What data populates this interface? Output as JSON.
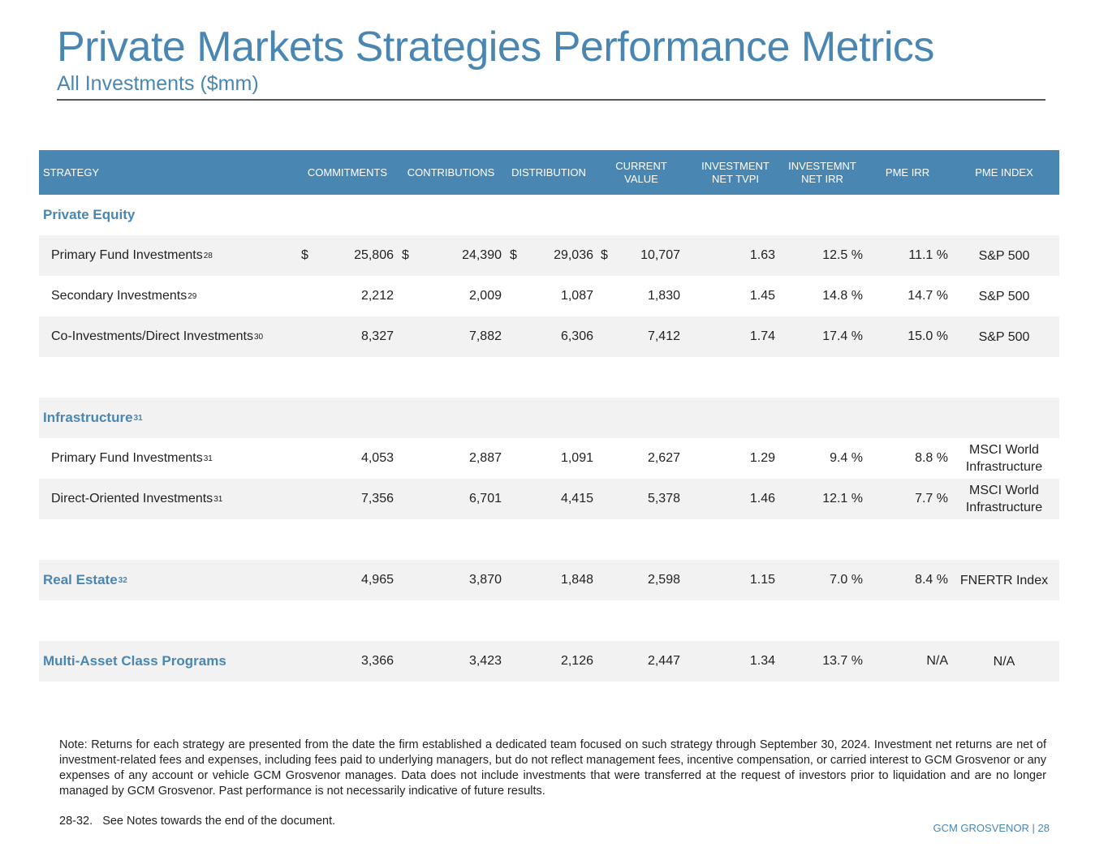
{
  "header": {
    "title": "Private Markets Strategies Performance Metrics",
    "subtitle": "All Investments ($mm)"
  },
  "table": {
    "columns": [
      "STRATEGY",
      "COMMITMENTS",
      "CONTRIBUTIONS",
      "DISTRIBUTION",
      "CURRENT\nVALUE",
      "INVESTMENT\nNET TVPI",
      "INVESTEMNT\nNET IRR",
      "PME IRR",
      "PME INDEX"
    ],
    "rows": [
      {
        "label": "Private Equity",
        "sup": "",
        "section": true,
        "shade": false,
        "cells": [
          "",
          "",
          "",
          "",
          "",
          "",
          "",
          ""
        ]
      },
      {
        "label": "Primary Fund Investments",
        "sup": "28",
        "section": false,
        "shade": true,
        "dollar": "$",
        "cells": [
          "25,806",
          "24,390",
          "29,036",
          "10,707",
          "1.63",
          "12.5 %",
          "11.1 %",
          "S&P 500"
        ]
      },
      {
        "label": "Secondary Investments",
        "sup": "29",
        "section": false,
        "shade": false,
        "cells": [
          "2,212",
          "2,009",
          "1,087",
          "1,830",
          "1.45",
          "14.8 %",
          "14.7 %",
          "S&P 500"
        ]
      },
      {
        "label": "Co-Investments/Direct Investments",
        "sup": "30",
        "section": false,
        "shade": true,
        "cells": [
          "8,327",
          "7,882",
          "6,306",
          "7,412",
          "1.74",
          "17.4 %",
          "15.0 %",
          "S&P 500"
        ]
      },
      {
        "label": "",
        "sup": "",
        "section": false,
        "shade": false,
        "spacer": true,
        "cells": [
          "",
          "",
          "",
          "",
          "",
          "",
          "",
          ""
        ]
      },
      {
        "label": "Infrastructure",
        "sup": "31",
        "section": true,
        "shade": true,
        "cells": [
          "",
          "",
          "",
          "",
          "",
          "",
          "",
          ""
        ]
      },
      {
        "label": "Primary Fund Investments",
        "sup": "31",
        "section": false,
        "shade": false,
        "cells": [
          "4,053",
          "2,887",
          "1,091",
          "2,627",
          "1.29",
          "9.4 %",
          "8.8 %",
          "MSCI World\nInfrastructure"
        ]
      },
      {
        "label": "Direct-Oriented Investments",
        "sup": "31",
        "section": false,
        "shade": true,
        "cells": [
          "7,356",
          "6,701",
          "4,415",
          "5,378",
          "1.46",
          "12.1 %",
          "7.7 %",
          "MSCI World\nInfrastructure"
        ]
      },
      {
        "label": "",
        "sup": "",
        "section": false,
        "shade": false,
        "spacer": true,
        "cells": [
          "",
          "",
          "",
          "",
          "",
          "",
          "",
          ""
        ]
      },
      {
        "label": "Real Estate",
        "sup": "32",
        "section": true,
        "shade": true,
        "cells": [
          "4,965",
          "3,870",
          "1,848",
          "2,598",
          "1.15",
          "7.0 %",
          "8.4 %",
          "FNERTR Index"
        ]
      },
      {
        "label": "",
        "sup": "",
        "section": false,
        "shade": false,
        "spacer": true,
        "cells": [
          "",
          "",
          "",
          "",
          "",
          "",
          "",
          ""
        ]
      },
      {
        "label": "Multi-Asset Class Programs",
        "sup": "",
        "section": true,
        "shade": true,
        "cells": [
          "3,366",
          "3,423",
          "2,126",
          "2,447",
          "1.34",
          "13.7 %",
          "N/A",
          "N/A"
        ]
      }
    ]
  },
  "notes": {
    "note": "Note: Returns for each strategy are presented from the date the firm established a dedicated team focused on such strategy through September 30, 2024. Investment net returns are net of investment-related fees and expenses, including fees paid to underlying managers, but do not reflect management fees, incentive compensation, or carried interest to GCM Grosvenor or any expenses of any account or vehicle GCM Grosvenor manages. Data does not include investments that were transferred at the request of investors prior to liquidation and are no longer managed by GCM Grosvenor. Past performance is not necessarily indicative of future results.",
    "footnote": "28-32.   See Notes towards the end of the document."
  },
  "footer": {
    "text": "GCM GROSVENOR | 28"
  }
}
